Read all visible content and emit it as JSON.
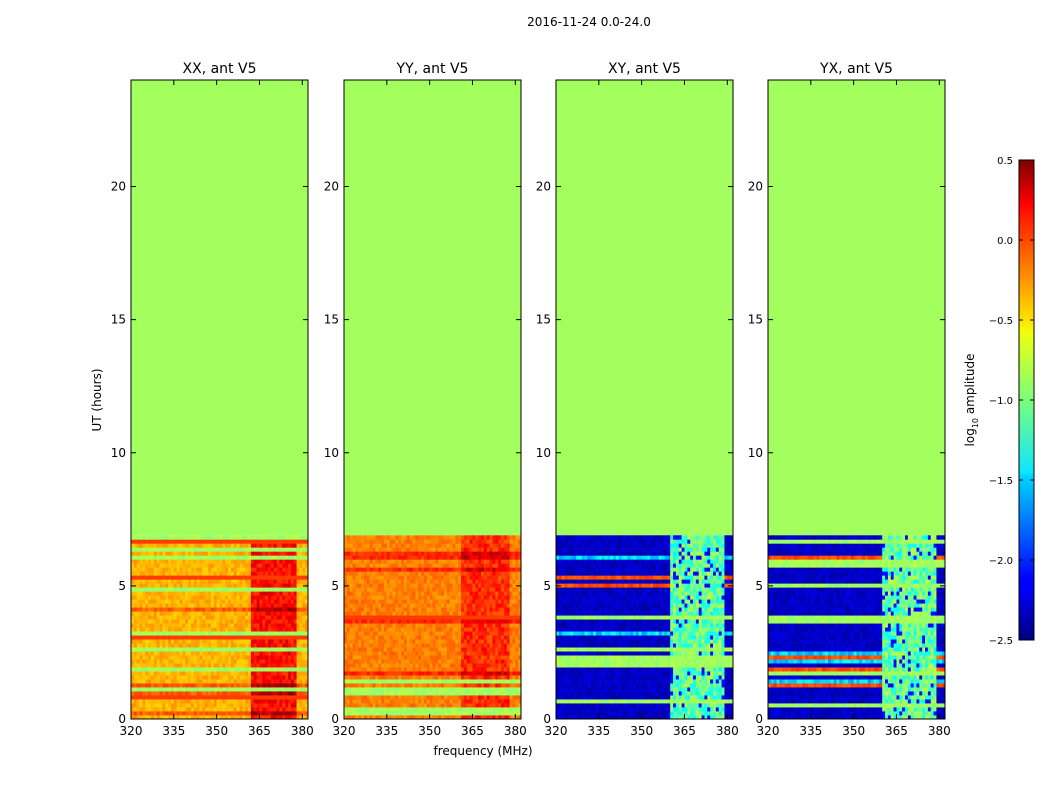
{
  "figure": {
    "suptitle": "2016-11-24 0.0-24.0",
    "xlabel": "frequency (MHz)",
    "ylabel": "UT (hours)",
    "colorbar_label_prefix": "log",
    "colorbar_label_sub": "10",
    "colorbar_label_suffix": " amplitude",
    "colorbar_ticks": [
      "0.5",
      "0.0",
      "−0.5",
      "−1.0",
      "−1.5",
      "−2.0",
      "−2.5"
    ],
    "colorbar_tick_values": [
      0.5,
      0.0,
      -0.5,
      -1.0,
      -1.5,
      -2.0,
      -2.5
    ]
  },
  "chart_data": [
    {
      "type": "heatmap",
      "title": "XX, ant V5",
      "pol": "XX",
      "xlim": [
        320,
        382
      ],
      "ylim": [
        0,
        24
      ],
      "xticks": [
        "320",
        "335",
        "350",
        "365",
        "380"
      ],
      "xtick_values": [
        320,
        335,
        350,
        365,
        380
      ],
      "yticks": [
        "0",
        "5",
        "10",
        "15",
        "20"
      ],
      "ytick_values": [
        0,
        5,
        10,
        15,
        20
      ],
      "data_end_hours": 6.9,
      "empty_value": -0.9,
      "base_value": -0.4,
      "hot_band_mhz": [
        362,
        377
      ],
      "hot_value": 0.1
    },
    {
      "type": "heatmap",
      "title": "YY, ant V5",
      "pol": "YY",
      "xlim": [
        320,
        382
      ],
      "ylim": [
        0,
        24
      ],
      "xticks": [
        "320",
        "335",
        "350",
        "365",
        "380"
      ],
      "xtick_values": [
        320,
        335,
        350,
        365,
        380
      ],
      "yticks": [
        "0",
        "5",
        "10",
        "15",
        "20"
      ],
      "ytick_values": [
        0,
        5,
        10,
        15,
        20
      ],
      "data_end_hours": 6.9,
      "empty_value": -0.9,
      "base_value": -0.25,
      "hot_band_mhz": [
        361,
        377
      ],
      "hot_value": 0.0
    },
    {
      "type": "heatmap",
      "title": "XY, ant V5",
      "pol": "XY",
      "xlim": [
        320,
        382
      ],
      "ylim": [
        0,
        24
      ],
      "xticks": [
        "320",
        "335",
        "350",
        "365",
        "380"
      ],
      "xtick_values": [
        320,
        335,
        350,
        365,
        380
      ],
      "yticks": [
        "0",
        "5",
        "10",
        "15",
        "20"
      ],
      "ytick_values": [
        0,
        5,
        10,
        15,
        20
      ],
      "data_end_hours": 6.9,
      "empty_value": -0.9,
      "base_value": -2.4,
      "hot_band_mhz": [
        360,
        378
      ],
      "hot_value": -1.1
    },
    {
      "type": "heatmap",
      "title": "YX, ant V5",
      "pol": "YX",
      "xlim": [
        320,
        382
      ],
      "ylim": [
        0,
        24
      ],
      "xticks": [
        "320",
        "335",
        "350",
        "365",
        "380"
      ],
      "xtick_values": [
        320,
        335,
        350,
        365,
        380
      ],
      "yticks": [
        "0",
        "5",
        "10",
        "15",
        "20"
      ],
      "ytick_values": [
        0,
        5,
        10,
        15,
        20
      ],
      "data_end_hours": 6.9,
      "empty_value": -0.9,
      "base_value": -2.4,
      "hot_band_mhz": [
        360,
        378
      ],
      "hot_value": -1.1
    }
  ]
}
